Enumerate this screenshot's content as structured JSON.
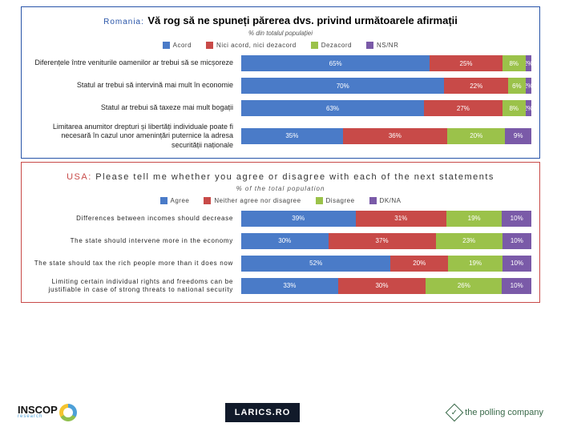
{
  "colors": {
    "agree": "#4a7bc8",
    "neither": "#c84a48",
    "disagree": "#9bc24a",
    "dkna": "#7a5aa8",
    "ro_border": "#2854a8",
    "us_border": "#c84a48",
    "ro_prefix": "#2854a8",
    "us_prefix": "#c84a48"
  },
  "romania": {
    "prefix": "Romania:",
    "title": "Vă rog să ne spuneți părerea dvs. privind următoarele afirmații",
    "subtitle": "% din totalul populației",
    "legend": [
      "Acord",
      "Nici acord, nici dezacord",
      "Dezacord",
      "NS/NR"
    ],
    "rows": [
      {
        "label": "Diferențele între veniturile oamenilor ar trebui să se micșoreze",
        "v": [
          65,
          25,
          8,
          2
        ]
      },
      {
        "label": "Statul ar trebui să intervină mai mult în economie",
        "v": [
          70,
          22,
          6,
          2
        ]
      },
      {
        "label": "Statul ar trebui să taxeze mai mult bogații",
        "v": [
          63,
          27,
          8,
          2
        ]
      },
      {
        "label": "Limitarea anumitor drepturi și libertăți individuale poate fi necesară în cazul unor amenințări puternice la adresa securității naționale",
        "v": [
          35,
          36,
          20,
          9
        ]
      }
    ]
  },
  "usa": {
    "prefix": "USA:",
    "title": "Please tell me whether you agree or disagree with each of the next statements",
    "subtitle": "% of the total population",
    "legend": [
      "Agree",
      "Neither agree nor disagree",
      "Disagree",
      "DK/NA"
    ],
    "rows": [
      {
        "label": "Differences between incomes should decrease",
        "v": [
          39,
          31,
          19,
          10
        ]
      },
      {
        "label": "The state should intervene more in the economy",
        "v": [
          30,
          37,
          23,
          10
        ]
      },
      {
        "label": "The state should tax the rich people more than it does now",
        "v": [
          52,
          20,
          19,
          10
        ]
      },
      {
        "label": "Limiting certain individual rights and freedoms can be justifiable in case of strong threats to national security",
        "v": [
          33,
          30,
          26,
          10
        ]
      }
    ]
  },
  "footer": {
    "inscop": "INSCOP",
    "inscop_sub": "research",
    "larics": "LARICS.RO",
    "polling": "the polling company"
  }
}
